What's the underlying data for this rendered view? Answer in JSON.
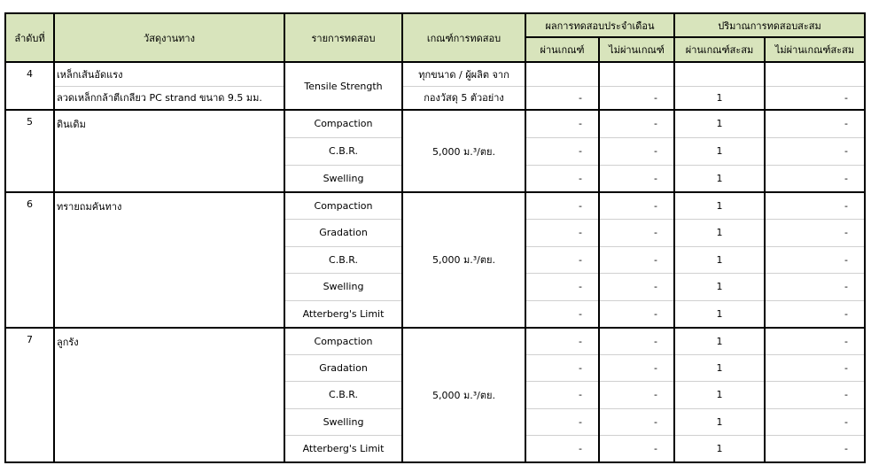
{
  "header": {
    "no": "ลำดับที่",
    "material": "วัสดุงานทาง",
    "test": "รายการทดสอบ",
    "criteria": "เกณฑ์การทดสอบ",
    "monthly": "ผลการทดสอบประจำเดือน",
    "cumulative": "ปริมาณการทดสอบสะสม",
    "monthly_pass": "ผ่านเกณฑ์",
    "monthly_fail": "ไม่ผ่านเกณฑ์",
    "cum_pass": "ผ่านเกณฑ์สะสม",
    "cum_fail": "ไม่ผ่านเกณฑ์สะสม"
  },
  "group4": {
    "no": "4",
    "material_lines": [
      "เหล็กเส้นอัดแรง",
      "ลวดเหล็กกล้าตีเกลียว PC strand ขนาด 9.5 มม."
    ],
    "test": "Tensile Strength",
    "criteria_lines": [
      "ทุกขนาด / ผู้ผลิต  จาก",
      "กองวัสดุ 5 ตัวอย่าง"
    ],
    "results": [
      [
        "",
        "",
        "",
        ""
      ],
      [
        "-",
        "-",
        "1",
        "-"
      ]
    ]
  },
  "groups": [
    {
      "no": "5",
      "material": "ดินเดิม",
      "criteria": "5,000 ม.³/ตย.",
      "tests": [
        "Compaction",
        "C.B.R.",
        "Swelling"
      ],
      "results": [
        [
          "-",
          "-",
          "1",
          "-"
        ],
        [
          "-",
          "-",
          "1",
          "-"
        ],
        [
          "-",
          "-",
          "1",
          "-"
        ]
      ]
    },
    {
      "no": "6",
      "material": "ทรายถมคันทาง",
      "criteria": "5,000 ม.³/ตย.",
      "tests": [
        "Compaction",
        "Gradation",
        "C.B.R.",
        "Swelling",
        "Atterberg's Limit"
      ],
      "results": [
        [
          "-",
          "-",
          "1",
          "-"
        ],
        [
          "-",
          "-",
          "1",
          "-"
        ],
        [
          "-",
          "-",
          "1",
          "-"
        ],
        [
          "-",
          "-",
          "1",
          "-"
        ],
        [
          "-",
          "-",
          "1",
          "-"
        ]
      ]
    },
    {
      "no": "7",
      "material": "ลูกรัง",
      "criteria": "5,000 ม.³/ตย.",
      "tests": [
        "Compaction",
        "Gradation",
        "C.B.R.",
        "Swelling",
        "Atterberg's Limit"
      ],
      "results": [
        [
          "-",
          "-",
          "1",
          "-"
        ],
        [
          "-",
          "-",
          "1",
          "-"
        ],
        [
          "-",
          "-",
          "1",
          "-"
        ],
        [
          "-",
          "-",
          "1",
          "-"
        ],
        [
          "-",
          "-",
          "1",
          "-"
        ]
      ]
    }
  ]
}
